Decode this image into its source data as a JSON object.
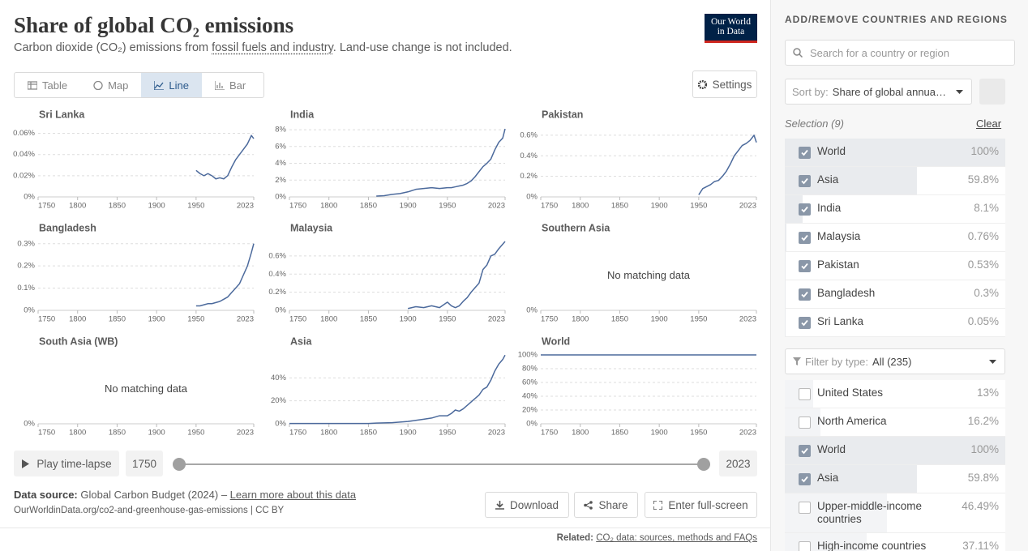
{
  "header": {
    "title": "Share of global CO₂ emissions",
    "subtitle": [
      "Carbon dioxide (CO₂) emissions from ",
      "fossil fuels and industry",
      ". Land-use change is not included."
    ],
    "logo": [
      "Our World",
      "in Data"
    ]
  },
  "tabs": [
    "Table",
    "Map",
    "Line",
    "Bar"
  ],
  "active_tab": 2,
  "settings_button": "Settings",
  "chart_data": [
    {
      "type": "line",
      "title": "Sri Lanka",
      "color": "#4c6a9c",
      "xlim": [
        1750,
        2023
      ],
      "xticks": [
        1750,
        1800,
        1850,
        1900,
        1950,
        2023
      ],
      "ylim": [
        0,
        0.065
      ],
      "yticks": [
        {
          "value": 0,
          "label": "0%"
        },
        {
          "value": 0.02,
          "label": "0.02%"
        },
        {
          "value": 0.04,
          "label": "0.04%"
        },
        {
          "value": 0.06,
          "label": "0.06%"
        }
      ],
      "x": [
        1750,
        1760,
        1770,
        1780,
        1790,
        1800,
        1810,
        1820,
        1830,
        1840,
        1850,
        1860,
        1870,
        1880,
        1890,
        1900,
        1910,
        1920,
        1930,
        1940,
        1950,
        1955,
        1960,
        1965,
        1970,
        1975,
        1980,
        1985,
        1990,
        1995,
        2000,
        2005,
        2010,
        2015,
        2020,
        2023
      ],
      "values": [
        null,
        null,
        null,
        null,
        null,
        null,
        null,
        null,
        null,
        null,
        null,
        null,
        null,
        null,
        null,
        null,
        null,
        null,
        null,
        null,
        0.025,
        0.022,
        0.02,
        0.022,
        0.02,
        0.017,
        0.018,
        0.017,
        0.02,
        0.028,
        0.035,
        0.04,
        0.045,
        0.05,
        0.058,
        0.055
      ]
    },
    {
      "type": "line",
      "title": "India",
      "color": "#4c6a9c",
      "xlim": [
        1750,
        2023
      ],
      "xticks": [
        1750,
        1800,
        1850,
        1900,
        1950,
        2023
      ],
      "ylim": [
        0,
        8.2
      ],
      "yticks": [
        {
          "value": 0,
          "label": "0%"
        },
        {
          "value": 2,
          "label": "2%"
        },
        {
          "value": 4,
          "label": "4%"
        },
        {
          "value": 6,
          "label": "6%"
        },
        {
          "value": 8,
          "label": "8%"
        }
      ],
      "x": [
        1750,
        1760,
        1770,
        1780,
        1790,
        1800,
        1810,
        1820,
        1830,
        1840,
        1850,
        1860,
        1870,
        1880,
        1890,
        1900,
        1910,
        1920,
        1930,
        1940,
        1950,
        1955,
        1960,
        1965,
        1970,
        1975,
        1980,
        1985,
        1990,
        1995,
        2000,
        2005,
        2010,
        2015,
        2020,
        2023
      ],
      "values": [
        null,
        null,
        null,
        null,
        null,
        null,
        null,
        null,
        null,
        null,
        null,
        0.1,
        0.15,
        0.3,
        0.4,
        0.6,
        0.9,
        1.0,
        1.1,
        1.0,
        1.1,
        1.1,
        1.2,
        1.3,
        1.4,
        1.6,
        1.9,
        2.4,
        3.0,
        3.6,
        4.0,
        4.5,
        5.6,
        6.5,
        7.0,
        8.1
      ]
    },
    {
      "type": "line",
      "title": "Pakistan",
      "color": "#4c6a9c",
      "xlim": [
        1750,
        2023
      ],
      "xticks": [
        1750,
        1800,
        1850,
        1900,
        1950,
        2023
      ],
      "ylim": [
        0,
        0.67
      ],
      "yticks": [
        {
          "value": 0,
          "label": "0%"
        },
        {
          "value": 0.2,
          "label": "0.2%"
        },
        {
          "value": 0.4,
          "label": "0.4%"
        },
        {
          "value": 0.6,
          "label": "0.6%"
        }
      ],
      "x": [
        1750,
        1760,
        1770,
        1780,
        1790,
        1800,
        1810,
        1820,
        1830,
        1840,
        1850,
        1860,
        1870,
        1880,
        1890,
        1900,
        1910,
        1920,
        1930,
        1940,
        1950,
        1955,
        1960,
        1965,
        1970,
        1975,
        1980,
        1985,
        1990,
        1995,
        2000,
        2005,
        2010,
        2015,
        2020,
        2023
      ],
      "values": [
        null,
        null,
        null,
        null,
        null,
        null,
        null,
        null,
        null,
        null,
        null,
        null,
        null,
        null,
        null,
        null,
        null,
        null,
        null,
        null,
        0.02,
        0.08,
        0.1,
        0.12,
        0.15,
        0.16,
        0.2,
        0.25,
        0.32,
        0.4,
        0.45,
        0.5,
        0.52,
        0.55,
        0.6,
        0.53
      ]
    },
    {
      "type": "line",
      "title": "Bangladesh",
      "color": "#4c6a9c",
      "xlim": [
        1750,
        2023
      ],
      "xticks": [
        1750,
        1800,
        1850,
        1900,
        1950,
        2023
      ],
      "ylim": [
        0,
        0.31
      ],
      "yticks": [
        {
          "value": 0,
          "label": "0%"
        },
        {
          "value": 0.1,
          "label": "0.1%"
        },
        {
          "value": 0.2,
          "label": "0.2%"
        },
        {
          "value": 0.3,
          "label": "0.3%"
        }
      ],
      "x": [
        1750,
        1760,
        1770,
        1780,
        1790,
        1800,
        1810,
        1820,
        1830,
        1840,
        1850,
        1860,
        1870,
        1880,
        1890,
        1900,
        1910,
        1920,
        1930,
        1940,
        1950,
        1955,
        1960,
        1965,
        1970,
        1975,
        1980,
        1985,
        1990,
        1995,
        2000,
        2005,
        2010,
        2015,
        2020,
        2023
      ],
      "values": [
        null,
        null,
        null,
        null,
        null,
        null,
        null,
        null,
        null,
        null,
        null,
        null,
        null,
        null,
        null,
        null,
        null,
        null,
        null,
        null,
        0.02,
        0.02,
        0.025,
        0.03,
        0.03,
        0.035,
        0.04,
        0.05,
        0.06,
        0.08,
        0.1,
        0.12,
        0.16,
        0.2,
        0.26,
        0.3
      ]
    },
    {
      "type": "line",
      "title": "Malaysia",
      "color": "#4c6a9c",
      "xlim": [
        1750,
        2023
      ],
      "xticks": [
        1750,
        1800,
        1850,
        1900,
        1950,
        2023
      ],
      "ylim": [
        0,
        0.76
      ],
      "yticks": [
        {
          "value": 0,
          "label": "0%"
        },
        {
          "value": 0.2,
          "label": "0.2%"
        },
        {
          "value": 0.4,
          "label": "0.4%"
        },
        {
          "value": 0.6,
          "label": "0.6%"
        }
      ],
      "x": [
        1750,
        1760,
        1770,
        1780,
        1790,
        1800,
        1810,
        1820,
        1830,
        1840,
        1850,
        1860,
        1870,
        1880,
        1890,
        1900,
        1910,
        1920,
        1930,
        1940,
        1950,
        1955,
        1960,
        1965,
        1970,
        1975,
        1980,
        1985,
        1990,
        1995,
        2000,
        2005,
        2010,
        2015,
        2020,
        2023
      ],
      "values": [
        null,
        null,
        null,
        null,
        null,
        null,
        null,
        null,
        null,
        null,
        null,
        null,
        null,
        null,
        null,
        0.02,
        0.04,
        0.03,
        0.05,
        0.03,
        0.09,
        0.05,
        0.03,
        0.05,
        0.1,
        0.14,
        0.2,
        0.25,
        0.3,
        0.45,
        0.5,
        0.6,
        0.62,
        0.68,
        0.73,
        0.76
      ]
    },
    {
      "type": "line",
      "title": "Southern Asia",
      "annotation": "No matching data",
      "xlim": [
        1750,
        2023
      ],
      "xticks": [
        1750,
        1800,
        1850,
        1900,
        1950,
        2023
      ],
      "yticks": [
        {
          "value": 0,
          "label": "0%"
        }
      ]
    },
    {
      "type": "line",
      "title": "South Asia (WB)",
      "annotation": "No matching data",
      "xlim": [
        1750,
        2023
      ],
      "xticks": [
        1750,
        1800,
        1850,
        1900,
        1950,
        2023
      ],
      "yticks": [
        {
          "value": 0,
          "label": "0%"
        }
      ]
    },
    {
      "type": "line",
      "title": "Asia",
      "color": "#4c6a9c",
      "xlim": [
        1750,
        2023
      ],
      "xticks": [
        1750,
        1800,
        1850,
        1900,
        1950,
        2023
      ],
      "ylim": [
        0,
        60
      ],
      "yticks": [
        {
          "value": 0,
          "label": "0%"
        },
        {
          "value": 20,
          "label": "20%"
        },
        {
          "value": 40,
          "label": "40%"
        }
      ],
      "x": [
        1750,
        1760,
        1770,
        1780,
        1790,
        1800,
        1810,
        1820,
        1830,
        1840,
        1850,
        1860,
        1870,
        1880,
        1890,
        1900,
        1910,
        1920,
        1930,
        1940,
        1950,
        1955,
        1960,
        1965,
        1970,
        1975,
        1980,
        1985,
        1990,
        1995,
        2000,
        2005,
        2010,
        2015,
        2020,
        2023
      ],
      "values": [
        0.3,
        0.3,
        0.3,
        0.3,
        0.3,
        0.3,
        0.3,
        0.3,
        0.3,
        0.3,
        0.3,
        0.6,
        0.8,
        1,
        1.5,
        2,
        3,
        4,
        5,
        7,
        7,
        9,
        12,
        11,
        13,
        16,
        19,
        22,
        25,
        30,
        32,
        38,
        46,
        52,
        56,
        59.8
      ]
    },
    {
      "type": "line",
      "title": "World",
      "color": "#4c6a9c",
      "xlim": [
        1750,
        2023
      ],
      "xticks": [
        1750,
        1800,
        1850,
        1900,
        1950,
        2023
      ],
      "ylim": [
        0,
        100
      ],
      "yticks": [
        {
          "value": 0,
          "label": "0%"
        },
        {
          "value": 20,
          "label": "20%"
        },
        {
          "value": 40,
          "label": "40%"
        },
        {
          "value": 60,
          "label": "60%"
        },
        {
          "value": 80,
          "label": "80%"
        },
        {
          "value": 100,
          "label": "100%"
        }
      ],
      "x": [
        1750,
        1760,
        1770,
        1780,
        1790,
        1800,
        1810,
        1820,
        1830,
        1840,
        1850,
        1860,
        1870,
        1880,
        1890,
        1900,
        1910,
        1920,
        1930,
        1940,
        1950,
        1955,
        1960,
        1965,
        1970,
        1975,
        1980,
        1985,
        1990,
        1995,
        2000,
        2005,
        2010,
        2015,
        2020,
        2023
      ],
      "values": [
        100,
        100,
        100,
        100,
        100,
        100,
        100,
        100,
        100,
        100,
        100,
        100,
        100,
        100,
        100,
        100,
        100,
        100,
        100,
        100,
        100,
        100,
        100,
        100,
        100,
        100,
        100,
        100,
        100,
        100,
        100,
        100,
        100,
        100,
        100,
        100
      ]
    }
  ],
  "timeline": {
    "play": "Play time-lapse",
    "start": "1750",
    "end": "2023"
  },
  "footer": {
    "source_label": "Data source:",
    "source": "Global Carbon Budget (2024) – ",
    "learn_more": "Learn more about this data",
    "url": "OurWorldinData.org/co2-and-greenhouse-gas-emissions | CC BY",
    "buttons": [
      "Download",
      "Share",
      "Enter full-screen"
    ],
    "related_label": "Related:",
    "related": "CO₂ data: sources, methods and FAQs"
  },
  "sidebar": {
    "heading": "ADD/REMOVE COUNTRIES AND REGIONS",
    "search_placeholder": "Search for a country or region",
    "sort_label": "Sort by:",
    "sort_value": "Share of global annua…",
    "selection_label": "Selection (9)",
    "clear": "Clear",
    "selected": [
      {
        "name": "World",
        "value": 100,
        "value_label": "100%",
        "checked": true
      },
      {
        "name": "Asia",
        "value": 59.8,
        "value_label": "59.8%",
        "checked": true
      },
      {
        "name": "India",
        "value": 8.1,
        "value_label": "8.1%",
        "checked": true
      },
      {
        "name": "Malaysia",
        "value": 0.76,
        "value_label": "0.76%",
        "checked": true
      },
      {
        "name": "Pakistan",
        "value": 0.53,
        "value_label": "0.53%",
        "checked": true
      },
      {
        "name": "Bangladesh",
        "value": 0.3,
        "value_label": "0.3%",
        "checked": true
      },
      {
        "name": "Sri Lanka",
        "value": 0.05,
        "value_label": "0.05%",
        "checked": true
      }
    ],
    "filter_label": "Filter by type:",
    "filter_value": "All (235)",
    "entities": [
      {
        "name": "United States",
        "value": 13,
        "value_label": "13%",
        "checked": false
      },
      {
        "name": "North America",
        "value": 16.2,
        "value_label": "16.2%",
        "checked": false
      },
      {
        "name": "World",
        "value": 100,
        "value_label": "100%",
        "checked": true
      },
      {
        "name": "Asia",
        "value": 59.8,
        "value_label": "59.8%",
        "checked": true
      },
      {
        "name": "Upper-middle-income countries",
        "value": 46.49,
        "value_label": "46.49%",
        "checked": false
      },
      {
        "name": "High-income countries",
        "value": 37.11,
        "value_label": "37.11%",
        "checked": false
      }
    ]
  }
}
